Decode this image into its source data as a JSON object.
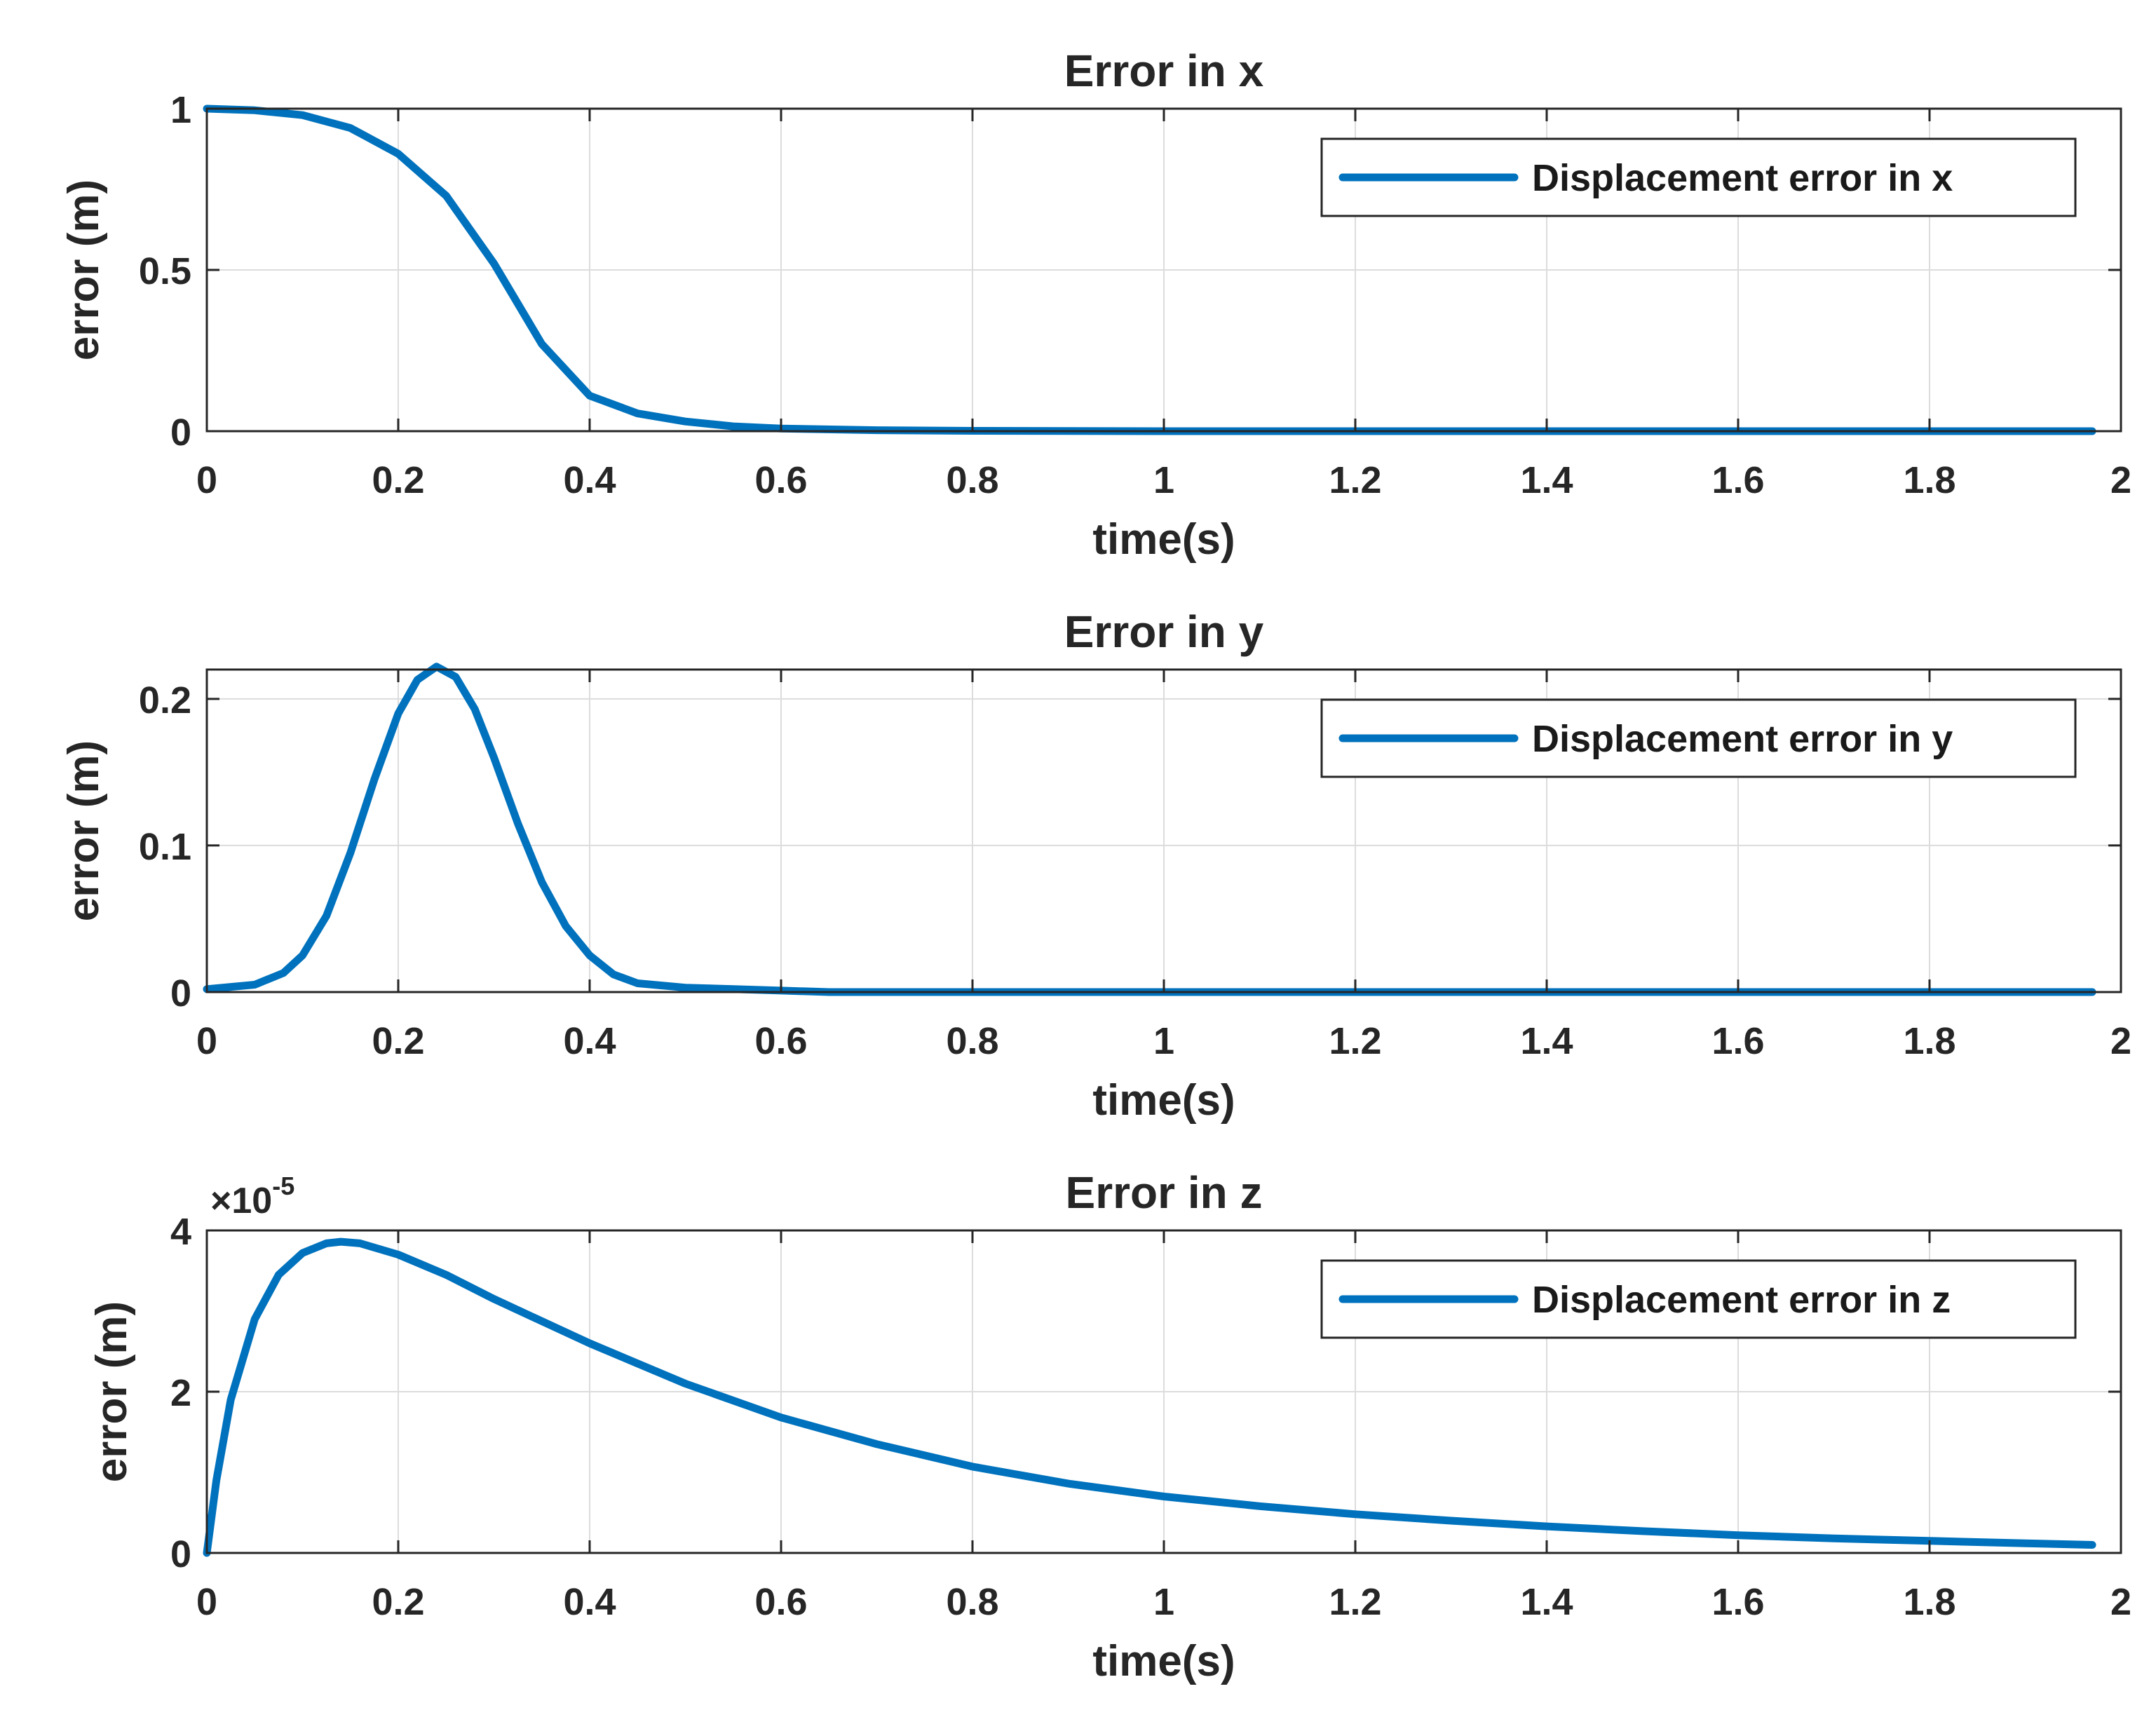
{
  "chart_data": [
    {
      "type": "line",
      "title": "Error in x",
      "xlabel": "time(s)",
      "ylabel": "error (m)",
      "xlim": [
        0,
        2
      ],
      "ylim": [
        0,
        1
      ],
      "xticks": [
        "0",
        "0.2",
        "0.4",
        "0.6",
        "0.8",
        "1",
        "1.2",
        "1.4",
        "1.6",
        "1.8",
        "2"
      ],
      "yticks": [
        "0",
        "0.5",
        "1"
      ],
      "grid": true,
      "legend_position": "top-right",
      "series": [
        {
          "name": "Displacement error in x",
          "color": "#0072BD",
          "x": [
            0,
            0.05,
            0.1,
            0.15,
            0.2,
            0.25,
            0.3,
            0.35,
            0.4,
            0.45,
            0.5,
            0.55,
            0.6,
            0.7,
            0.8,
            1.0,
            1.2,
            1.4,
            1.6,
            1.8,
            1.97
          ],
          "y": [
            1.0,
            0.995,
            0.98,
            0.94,
            0.86,
            0.73,
            0.52,
            0.27,
            0.11,
            0.055,
            0.03,
            0.015,
            0.008,
            0.003,
            0.001,
            0,
            0,
            0,
            0,
            0,
            0
          ]
        }
      ]
    },
    {
      "type": "line",
      "title": "Error in y",
      "xlabel": "time(s)",
      "ylabel": "error (m)",
      "xlim": [
        0,
        2
      ],
      "ylim": [
        0,
        0.22
      ],
      "xticks": [
        "0",
        "0.2",
        "0.4",
        "0.6",
        "0.8",
        "1",
        "1.2",
        "1.4",
        "1.6",
        "1.8",
        "2"
      ],
      "yticks": [
        "0",
        "0.1",
        "0.2"
      ],
      "grid": true,
      "legend_position": "top-right",
      "series": [
        {
          "name": "Displacement error in y",
          "color": "#0072BD",
          "x": [
            0,
            0.05,
            0.08,
            0.1,
            0.125,
            0.15,
            0.175,
            0.2,
            0.22,
            0.24,
            0.26,
            0.28,
            0.3,
            0.325,
            0.35,
            0.375,
            0.4,
            0.425,
            0.45,
            0.5,
            0.55,
            0.6,
            0.65,
            0.8,
            1.0,
            1.2,
            1.4,
            1.6,
            1.8,
            1.97
          ],
          "y": [
            0.002,
            0.005,
            0.013,
            0.025,
            0.052,
            0.095,
            0.145,
            0.19,
            0.213,
            0.222,
            0.215,
            0.193,
            0.16,
            0.115,
            0.075,
            0.045,
            0.025,
            0.012,
            0.006,
            0.003,
            0.002,
            0.001,
            0,
            0,
            0,
            0,
            0,
            0,
            0,
            0
          ]
        }
      ]
    },
    {
      "type": "line",
      "title": "Error in z",
      "xlabel": "time(s)",
      "ylabel": "error (m)",
      "xlim": [
        0,
        2
      ],
      "ylim": [
        0,
        4
      ],
      "y_multiplier_base": "×10",
      "y_multiplier_exponent": "-5",
      "xticks": [
        "0",
        "0.2",
        "0.4",
        "0.6",
        "0.8",
        "1",
        "1.2",
        "1.4",
        "1.6",
        "1.8",
        "2"
      ],
      "yticks": [
        "0",
        "2",
        "4"
      ],
      "grid": true,
      "legend_position": "top-right",
      "series": [
        {
          "name": "Displacement error in z",
          "color": "#0072BD",
          "x": [
            0,
            0.01,
            0.025,
            0.05,
            0.075,
            0.1,
            0.125,
            0.14,
            0.16,
            0.2,
            0.25,
            0.3,
            0.4,
            0.5,
            0.6,
            0.7,
            0.8,
            0.9,
            1.0,
            1.1,
            1.2,
            1.3,
            1.4,
            1.5,
            1.6,
            1.7,
            1.8,
            1.9,
            1.97
          ],
          "y": [
            0,
            0.9,
            1.9,
            2.9,
            3.45,
            3.72,
            3.84,
            3.86,
            3.84,
            3.7,
            3.45,
            3.15,
            2.6,
            2.1,
            1.68,
            1.35,
            1.07,
            0.86,
            0.7,
            0.58,
            0.48,
            0.4,
            0.33,
            0.27,
            0.22,
            0.18,
            0.15,
            0.12,
            0.1
          ]
        }
      ]
    }
  ]
}
